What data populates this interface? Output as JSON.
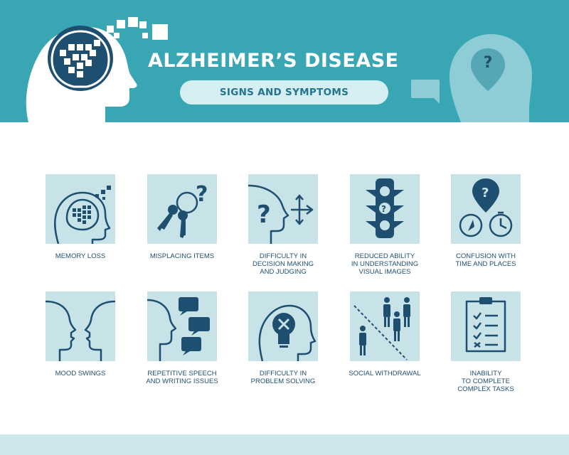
{
  "header": {
    "title": "ALZHEIMER’S DISEASE",
    "subtitle": "SIGNS AND SYMPTOMS",
    "question_mark": "?"
  },
  "colors": {
    "banner": "#38a7b3",
    "tile": "#c7e3e8",
    "icon": "#1f4f70",
    "text": "#1f4f70"
  },
  "symptoms": [
    {
      "icon": "brain-pixel-head-icon",
      "lines": [
        "MEMORY LOSS"
      ]
    },
    {
      "icon": "keys-question-icon",
      "lines": [
        "MISPLACING ITEMS"
      ]
    },
    {
      "icon": "head-arrows-icon",
      "lines": [
        "DIFFICULTY IN",
        "DECISION MAKING",
        "AND JUDGING"
      ]
    },
    {
      "icon": "traffic-light-icon",
      "lines": [
        "REDUCED ABILITY",
        "IN UNDERSTANDING",
        "VISUAL IMAGES"
      ]
    },
    {
      "icon": "clock-compass-icon",
      "lines": [
        "CONFUSION WITH",
        "TIME AND PLACES"
      ]
    },
    {
      "icon": "two-faces-icon",
      "lines": [
        "MOOD SWINGS"
      ]
    },
    {
      "icon": "speech-bubbles-icon",
      "lines": [
        "REPETITIVE SPEECH",
        "AND WRITING ISSUES"
      ]
    },
    {
      "icon": "bulb-x-icon",
      "lines": [
        "DIFFICULTY IN",
        "PROBLEM SOLVING"
      ]
    },
    {
      "icon": "people-divider-icon",
      "lines": [
        "SOCIAL WITHDRAWAL"
      ]
    },
    {
      "icon": "checklist-icon",
      "lines": [
        "INABILITY",
        "TO COMPLETE",
        "COMPLEX TASKS"
      ]
    }
  ]
}
